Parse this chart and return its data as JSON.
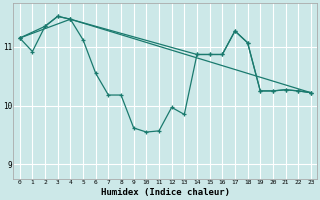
{
  "xlabel": "Humidex (Indice chaleur)",
  "xlim": [
    -0.5,
    23.5
  ],
  "ylim": [
    8.75,
    11.75
  ],
  "yticks": [
    9,
    10,
    11
  ],
  "xticks": [
    0,
    1,
    2,
    3,
    4,
    5,
    6,
    7,
    8,
    9,
    10,
    11,
    12,
    13,
    14,
    15,
    16,
    17,
    18,
    19,
    20,
    21,
    22,
    23
  ],
  "bg_color": "#cce8e8",
  "grid_color": "#ffffff",
  "line_color": "#1a7a6e",
  "line1_x": [
    0,
    1,
    2,
    3,
    4,
    5,
    6,
    7,
    8,
    9,
    10,
    11,
    12,
    13,
    14,
    15,
    16,
    17,
    18,
    19,
    20,
    21,
    22,
    23
  ],
  "line1_y": [
    11.15,
    10.92,
    11.35,
    11.52,
    11.47,
    11.12,
    10.55,
    10.18,
    10.18,
    9.62,
    9.55,
    9.57,
    9.97,
    9.85,
    10.87,
    10.87,
    10.87,
    11.27,
    11.07,
    10.25,
    10.25,
    10.27,
    10.25,
    10.22
  ],
  "line2_x": [
    0,
    2,
    3,
    4,
    14,
    15,
    16,
    17,
    18,
    19,
    20,
    21,
    22,
    23
  ],
  "line2_y": [
    11.15,
    11.35,
    11.52,
    11.47,
    10.87,
    10.87,
    10.87,
    11.27,
    11.07,
    10.25,
    10.25,
    10.27,
    10.25,
    10.22
  ],
  "line3_x": [
    0,
    4,
    23
  ],
  "line3_y": [
    11.15,
    11.47,
    10.22
  ]
}
